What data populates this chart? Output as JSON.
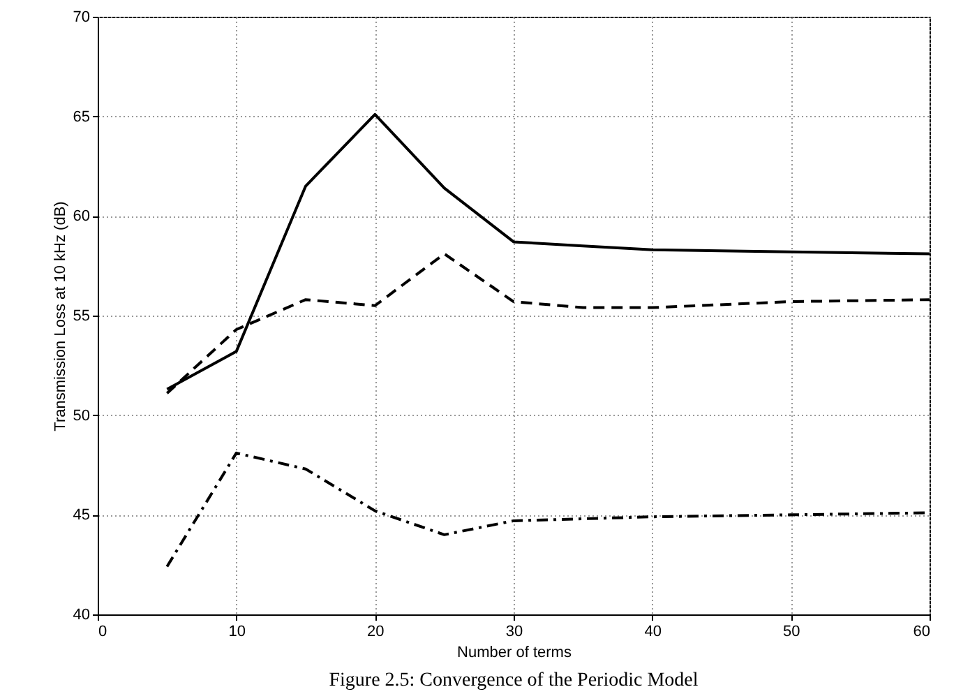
{
  "chart_data": {
    "type": "line",
    "xlabel": "Number of terms",
    "ylabel": "Transmission Loss at 10 kHz (dB)",
    "annotations": [
      "Figure 2.5: Convergence of the Periodic Model"
    ],
    "xlim": [
      0,
      60
    ],
    "xticks": [
      0,
      10,
      20,
      30,
      40,
      50,
      60
    ],
    "ylim": [
      40,
      70
    ],
    "yticks": [
      40,
      45,
      50,
      55,
      60,
      65,
      70
    ],
    "grid": true,
    "x": [
      5,
      10,
      15,
      20,
      25,
      30,
      35,
      40,
      50,
      60
    ],
    "series": [
      {
        "color": "#000000",
        "line_style": "solid",
        "values": [
          51.3,
          53.2,
          61.5,
          65.1,
          61.4,
          58.7,
          58.5,
          58.3,
          58.2,
          58.1
        ]
      },
      {
        "color": "#000000",
        "line_style": "dashed",
        "values": [
          51.1,
          54.3,
          55.8,
          55.5,
          58.1,
          55.7,
          55.4,
          55.4,
          55.7,
          55.8
        ]
      },
      {
        "color": "#000000",
        "line_style": "dashdot",
        "values": [
          42.4,
          48.1,
          47.3,
          45.2,
          44.0,
          44.7,
          44.8,
          44.9,
          45.0,
          45.1
        ]
      }
    ]
  }
}
